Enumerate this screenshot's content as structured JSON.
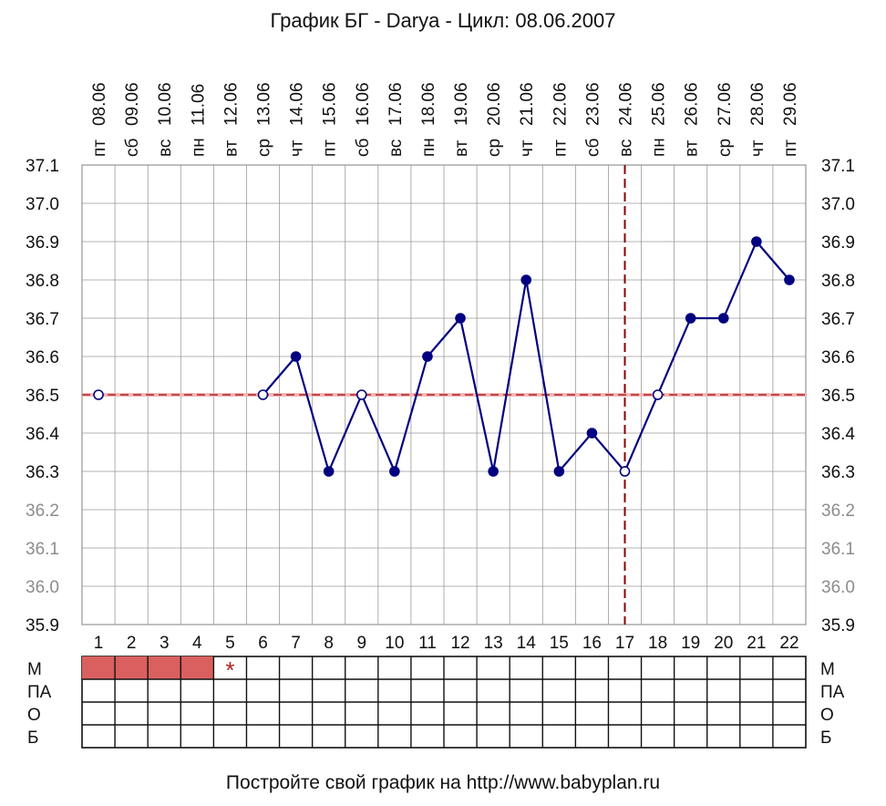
{
  "chart_data": {
    "type": "line",
    "title": "График БГ - Darya - Цикл: 08.06.2007",
    "footer": "Постройте свой график на http://www.babyplan.ru",
    "dates": [
      "08.06",
      "09.06",
      "10.06",
      "11.06",
      "12.06",
      "13.06",
      "14.06",
      "15.06",
      "16.06",
      "17.06",
      "18.06",
      "19.06",
      "20.06",
      "21.06",
      "22.06",
      "23.06",
      "24.06",
      "25.06",
      "26.06",
      "27.06",
      "28.06",
      "29.06"
    ],
    "weekdays": [
      "пт",
      "сб",
      "вс",
      "пн",
      "вт",
      "ср",
      "чт",
      "пт",
      "сб",
      "вс",
      "пн",
      "вт",
      "ср",
      "чт",
      "пт",
      "сб",
      "вс",
      "пн",
      "вт",
      "ср",
      "чт",
      "пт"
    ],
    "x": [
      1,
      2,
      3,
      4,
      5,
      6,
      7,
      8,
      9,
      10,
      11,
      12,
      13,
      14,
      15,
      16,
      17,
      18,
      19,
      20,
      21,
      22
    ],
    "values": [
      36.5,
      null,
      null,
      null,
      null,
      36.5,
      36.6,
      36.3,
      36.5,
      36.3,
      36.6,
      36.7,
      36.3,
      36.8,
      36.3,
      36.4,
      36.3,
      36.5,
      36.7,
      36.7,
      36.9,
      36.8
    ],
    "hollow_points": [
      1,
      6,
      9,
      17,
      18
    ],
    "ylim": [
      35.9,
      37.1
    ],
    "yticks": [
      "37.1",
      "37.0",
      "36.9",
      "36.8",
      "36.7",
      "36.6",
      "36.5",
      "36.4",
      "36.3",
      "36.2",
      "36.1",
      "36.0",
      "35.9"
    ],
    "coverline": 36.5,
    "ovulation_day": 17,
    "grid": true,
    "line_color": "#000080",
    "coverline_color": "#b22222",
    "menstruation_color": "#d9605e",
    "row_labels": [
      "М",
      "ПА",
      "О",
      "Б"
    ],
    "menstruation_days": [
      1,
      2,
      3,
      4
    ],
    "star_day": 5,
    "star_symbol": "*"
  }
}
